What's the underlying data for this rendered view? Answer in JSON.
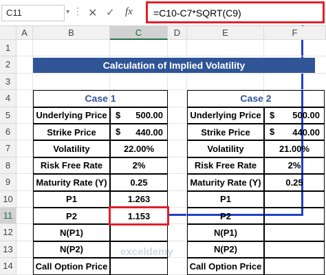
{
  "formula_bar": {
    "name_box": "C11",
    "name_box_caret": "▾",
    "dots": "⋮",
    "cancel_icon": "✕",
    "enter_icon": "✓",
    "fx_icon": "fx",
    "formula": "=C10-C7*SQRT(C9)"
  },
  "columns": [
    "A",
    "B",
    "C",
    "D",
    "E",
    "F"
  ],
  "rows": [
    "1",
    "2",
    "3",
    "4",
    "5",
    "6",
    "7",
    "8",
    "9",
    "10",
    "11",
    "12",
    "13",
    "14"
  ],
  "title": "Calculation of Implied Volatility",
  "case1": {
    "header": "Case 1",
    "labels": [
      "Underlying Price",
      "Strike Price",
      "Volatility",
      "Risk Free Rate",
      "Maturity Rate (Y)",
      "P1",
      "P2",
      "N(P1)",
      "N(P2)",
      "Call Option Price"
    ],
    "currency": [
      "$",
      "$",
      "",
      "",
      "",
      "",
      "",
      "",
      "",
      ""
    ],
    "values": [
      "500.00",
      "440.00",
      "22.00%",
      "2%",
      "0.25",
      "1.263",
      "1.153",
      "",
      "",
      ""
    ]
  },
  "case2": {
    "header": "Case 2",
    "labels": [
      "Underlying Price",
      "Strike Price",
      "Volatility",
      "Risk Free Rate",
      "Maturity Rate (Y)",
      "P1",
      "P2",
      "N(P1)",
      "N(P2)",
      "Call Option Price"
    ],
    "currency": [
      "$",
      "$",
      "",
      "",
      "",
      "",
      "",
      "",
      "",
      ""
    ],
    "values": [
      "500.00",
      "440.00",
      "21.00%",
      "2%",
      "0.25",
      "",
      "",
      "",
      "",
      ""
    ]
  },
  "watermark": "exceldemy",
  "colors": {
    "banner": "#2f5597",
    "highlight": "#e01f26",
    "arrow": "#1f3fcf"
  }
}
